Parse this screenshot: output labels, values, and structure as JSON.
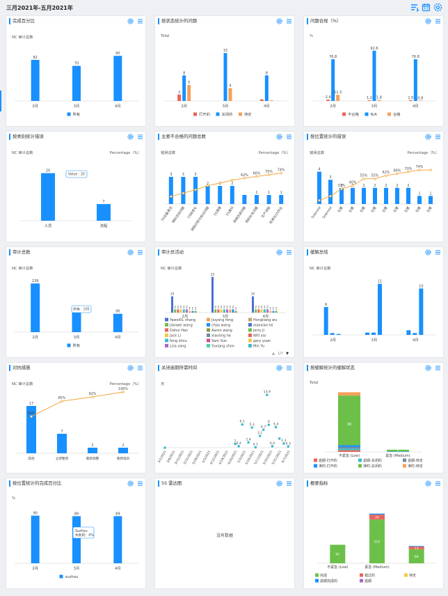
{
  "header": {
    "title": "三月2021年-五月2021年",
    "icons": [
      "list-filter-icon",
      "calendar-icon",
      "settings-icon"
    ]
  },
  "no_data": "没有数据",
  "colors": {
    "blue": "#1890ff",
    "red": "#e8655a",
    "orange": "#f5a05a",
    "green": "#6cc04a",
    "olive": "#8d9c3a",
    "yellow": "#f5c842",
    "teal": "#3cbccc",
    "purple": "#a66cc4",
    "line": "#f0a030"
  },
  "cards": [
    {
      "id": "c1",
      "title": "完成百分比",
      "subtitle": "NC 审计总数"
    },
    {
      "id": "c2",
      "title": "按状态统计的问题",
      "subtitle": "Total"
    },
    {
      "id": "c3",
      "title": "问题合规（%）",
      "subtitle": "%"
    },
    {
      "id": "c4",
      "title": "按类别统计错误",
      "subtitle": "NC 审计总数",
      "subtitle_right": "Percentage（%）"
    },
    {
      "id": "c5",
      "title": "主要不合格的问题总数",
      "subtitle": "错误总数",
      "subtitle_right": "Percentage（%）"
    },
    {
      "id": "c6",
      "title": "按位置统计的错误",
      "subtitle": "错误总数",
      "subtitle_right": "Percentage（%）"
    },
    {
      "id": "c7",
      "title": "审计总数",
      "subtitle": "NC 审计总数"
    },
    {
      "id": "c8",
      "title": "审计员活动",
      "subtitle": "NC 审计总数"
    },
    {
      "id": "c9",
      "title": "缓解总结",
      "subtitle": "NC 审计总数"
    },
    {
      "id": "c10",
      "title": "对抗措施",
      "subtitle": "NC 审计总数",
      "subtitle_right": "Percentage（%）"
    },
    {
      "id": "c11",
      "title": "关闭逾期所需时间",
      "subtitle": "天"
    },
    {
      "id": "c12",
      "title": "按缓解统计的缓解状态",
      "subtitle": "Total"
    },
    {
      "id": "c13",
      "title": "按位置统计的完成百分比",
      "subtitle": "%"
    },
    {
      "id": "c14",
      "title": "5S 雷达图",
      "subtitle": ""
    },
    {
      "id": "c15",
      "title": "概要指标",
      "subtitle": ""
    }
  ],
  "chart_data": [
    {
      "id": "c1",
      "type": "bar",
      "categories": [
        "2月",
        "3月",
        "4月"
      ],
      "series": [
        {
          "name": "所有",
          "color": "#1890ff",
          "values": [
            82,
            70,
            90
          ]
        }
      ],
      "ylim": [
        0,
        100
      ],
      "legend": "bottom"
    },
    {
      "id": "c2",
      "type": "bar",
      "categories": [
        "2月",
        "3月",
        "4月"
      ],
      "series": [
        {
          "name": "打开的",
          "color": "#e8655a",
          "values": [
            2,
            0,
            0.5
          ]
        },
        {
          "name": "关闭的",
          "color": "#1890ff",
          "values": [
            8,
            15,
            8
          ]
        },
        {
          "name": "待定",
          "color": "#f5a05a",
          "values": [
            5,
            4,
            0.2
          ]
        }
      ],
      "labels": [
        [
          "2",
          "8",
          "5"
        ],
        [
          "",
          "15",
          "4"
        ],
        [
          "",
          "8",
          ""
        ]
      ],
      "ylim": [
        0,
        17
      ],
      "legend": "bottom"
    },
    {
      "id": "c3",
      "type": "bar",
      "categories": [
        "2月",
        "3月",
        "4月"
      ],
      "series": [
        {
          "name": "不合格",
          "color": "#e8655a",
          "values": [
            2.4,
            1.2,
            1.5
          ]
        },
        {
          "name": "N/A",
          "color": "#1890ff",
          "values": [
            76.8,
            92.6,
            76.8
          ]
        },
        {
          "name": "合格",
          "color": "#f5a05a",
          "values": [
            11.3,
            1.8,
            0.8
          ]
        }
      ],
      "ylim": [
        0,
        100
      ],
      "legend": "bottom"
    },
    {
      "id": "c4",
      "type": "bar",
      "categories": [
        "人员",
        "流程"
      ],
      "series": [
        {
          "name": "",
          "color": "#1890ff",
          "values": [
            20,
            7
          ]
        }
      ],
      "tooltip": "Value : 20",
      "ylim": [
        0,
        24
      ]
    },
    {
      "id": "c5",
      "type": "pareto",
      "categories": [
        "5S设备清洁",
        "物料流动问题",
        "5S标准化",
        "缺陷识别与标记问题",
        "5S清理",
        "5S清扫",
        "持续改进问题",
        "物料补充问题",
        "生产流程",
        "标准化5S作业"
      ],
      "values": [
        3,
        3,
        3,
        2,
        2,
        2,
        1,
        1,
        1,
        1
      ],
      "cumulative": [
        18,
        26,
        34,
        44,
        50,
        57,
        62,
        66,
        70,
        74
      ],
      "value_labels": [
        "3",
        "3",
        "3",
        "2",
        "2",
        "2",
        "",
        "1",
        "1",
        "1"
      ],
      "pct_labels": [
        "",
        "",
        "",
        "",
        "",
        "",
        "62%",
        "66%",
        "70%",
        "74%"
      ],
      "ylim": [
        0,
        4
      ]
    },
    {
      "id": "c6",
      "type": "pareto",
      "categories": [
        "Solenoid",
        "Solenoid",
        "位置",
        "位置",
        "位置",
        "位置",
        "位置",
        "位置",
        "位置",
        "位置",
        "位置"
      ],
      "values": [
        4,
        3,
        2,
        2,
        2,
        2,
        2,
        2,
        2,
        1,
        1
      ],
      "cumulative": [
        8,
        17,
        33,
        40,
        55,
        55,
        62,
        66,
        70,
        74,
        74
      ],
      "value_labels": [
        "4",
        "3",
        "2",
        "2",
        "2",
        "2",
        "2",
        "2",
        "2",
        "1",
        "1"
      ],
      "pct_labels": [
        "",
        "",
        "33%",
        "40%",
        "55%",
        "55%",
        "62%",
        "66%",
        "70%",
        "74%",
        ""
      ],
      "ylim": [
        0,
        5
      ]
    },
    {
      "id": "c7",
      "type": "bar",
      "categories": [
        "2月",
        "3月",
        "4月"
      ],
      "series": [
        {
          "name": "所有",
          "color": "#1890ff",
          "values": [
            239,
            105,
            90
          ]
        }
      ],
      "value_labels": [
        "239",
        "105",
        "90"
      ],
      "tooltip": "所有 : 105",
      "ylim": [
        0,
        260
      ],
      "legend": "bottom"
    },
    {
      "id": "c8",
      "type": "grouped_bar",
      "categories": [
        "2月",
        "3月",
        "4月"
      ],
      "group_labels": [
        [
          "10",
          "2",
          "2",
          "2",
          "2",
          "2",
          "1",
          "1",
          "1"
        ],
        [
          "22",
          "2",
          "2",
          "2",
          "2",
          "2",
          "2",
          "2",
          "1"
        ],
        [
          "10",
          "2",
          "2",
          "2",
          "2",
          "2",
          "1",
          "1",
          "1"
        ]
      ],
      "series_names": [
        "Yawei01 zhang",
        "Jianwei wang",
        "Dahui Han",
        "Jack Li",
        "feng zhou",
        "Lisa sang",
        "Jiuyong feng",
        "chao wang",
        "Aaron wang",
        "xiaoting he",
        "Sam Sun",
        "Yuxiang zhon",
        "Hongliang wu",
        "xiaoxiao he",
        "Jerry Ji",
        "Will xia",
        "gary yuan",
        "Min Yu"
      ],
      "legend_page": "1/7",
      "legend": "bottom"
    },
    {
      "id": "c9",
      "type": "bar",
      "categories": [
        "2月",
        "3月",
        "4月"
      ],
      "series": [
        {
          "name": "",
          "color": "#1890ff",
          "values": [
            [
              6,
              0.4,
              0.2
            ],
            [
              0.5,
              0.5,
              11
            ],
            [
              1,
              0.4,
              10
            ]
          ]
        }
      ],
      "value_labels": [
        "6",
        "11",
        "10"
      ],
      "ylim": [
        0,
        12
      ]
    },
    {
      "id": "c10",
      "type": "pareto",
      "categories": [
        "其他",
        "立即整改",
        "重新调整",
        "重新培训"
      ],
      "values": [
        17,
        7,
        2,
        2
      ],
      "cumulative": [
        60,
        85,
        92,
        100
      ],
      "value_labels": [
        "17",
        "7",
        "2",
        "2"
      ],
      "pct_labels": [
        "60%",
        "85%",
        "92%",
        "100%"
      ],
      "ylim": [
        0,
        20
      ]
    },
    {
      "id": "c11",
      "type": "scatter",
      "x": [
        "3/1/2021",
        "3/8/2021",
        "3/15/2021",
        "3/22/2021",
        "3/29/2021",
        "4/5/2021",
        "4/12/2021",
        "4/19/2021",
        "4/26/2021",
        "5/3/2021",
        "5/10/2021",
        "5/17/2021",
        "5/24/2021",
        "5/31/2021",
        "6/7/2021"
      ],
      "points": [
        [
          0,
          0
        ],
        [
          4.8,
          1
        ],
        [
          5.2,
          0.4
        ],
        [
          5.6,
          6.1
        ],
        [
          6.3,
          1.4
        ],
        [
          6.7,
          5.3
        ],
        [
          7.1,
          0.1
        ],
        [
          7.6,
          3.1
        ],
        [
          8,
          4.7
        ],
        [
          8.6,
          6
        ],
        [
          9,
          0.4
        ],
        [
          9.4,
          5.4
        ],
        [
          9.8,
          2.4
        ],
        [
          10.3,
          1.1
        ],
        [
          10.8,
          0.3
        ],
        [
          8.4,
          13.9
        ]
      ],
      "point_labels": [
        "",
        "1",
        "0.4",
        "6.1",
        "1.4",
        "5.3",
        "0.1",
        "3.1",
        "4.7",
        "6",
        "0.4",
        "5.4",
        "",
        "1.1",
        "0.3",
        "13.9"
      ],
      "ylim": [
        0,
        15
      ]
    },
    {
      "id": "c12",
      "type": "stacked_bar",
      "categories": [
        "不紧急 (Low)",
        "紧急 (Medium)"
      ],
      "series": [
        {
          "name": "逾期-打开的",
          "color": "#e8655a",
          "values": [
            1,
            0
          ]
        },
        {
          "name": "逾期-关闭的",
          "color": "#3cbccc",
          "values": [
            1,
            0
          ]
        },
        {
          "name": "逾期-待定",
          "color": "#6d8c9c",
          "values": [
            1,
            0
          ]
        },
        {
          "name": "准时-打开的",
          "color": "#1890ff",
          "values": [
            1,
            0.3
          ]
        },
        {
          "name": "准时-关闭的",
          "color": "#6cc04a",
          "values": [
            30,
            1
          ]
        },
        {
          "name": "准时-待定",
          "color": "#f5a05a",
          "values": [
            2,
            0
          ]
        }
      ],
      "label": "30",
      "label2": "1",
      "legend": "bottom"
    },
    {
      "id": "c13",
      "type": "bar",
      "categories": [
        "2月",
        "3月",
        "4月"
      ],
      "series": [
        {
          "name": "suzhou",
          "color": "#1890ff",
          "values": [
            90,
            89,
            89
          ]
        }
      ],
      "tooltip": "Suzhou\n失败的：0%",
      "ylim": [
        0,
        100
      ],
      "legend": "bottom"
    },
    {
      "id": "c15",
      "type": "stacked_bar",
      "categories": [
        "不紧急 (Low)",
        "紧急 (Medium)",
        ""
      ],
      "series": [
        {
          "name": "完成",
          "color": "#6cc04a",
          "values": [
            91,
            215,
            69
          ]
        },
        {
          "name": "错过的",
          "color": "#e8655a",
          "values": [
            0,
            24,
            13
          ]
        },
        {
          "name": "待定",
          "color": "#f5c842",
          "values": [
            0,
            0,
            0
          ]
        },
        {
          "name": "逾期完成的",
          "color": "#1890ff",
          "values": [
            0,
            5,
            3
          ]
        },
        {
          "name": "逾期",
          "color": "#a66cc4",
          "values": [
            0,
            0,
            0
          ]
        }
      ],
      "label_values": [
        [
          "91"
        ],
        [
          "215",
          "24"
        ],
        [
          "69",
          "13"
        ]
      ],
      "legend": "bottom"
    }
  ]
}
